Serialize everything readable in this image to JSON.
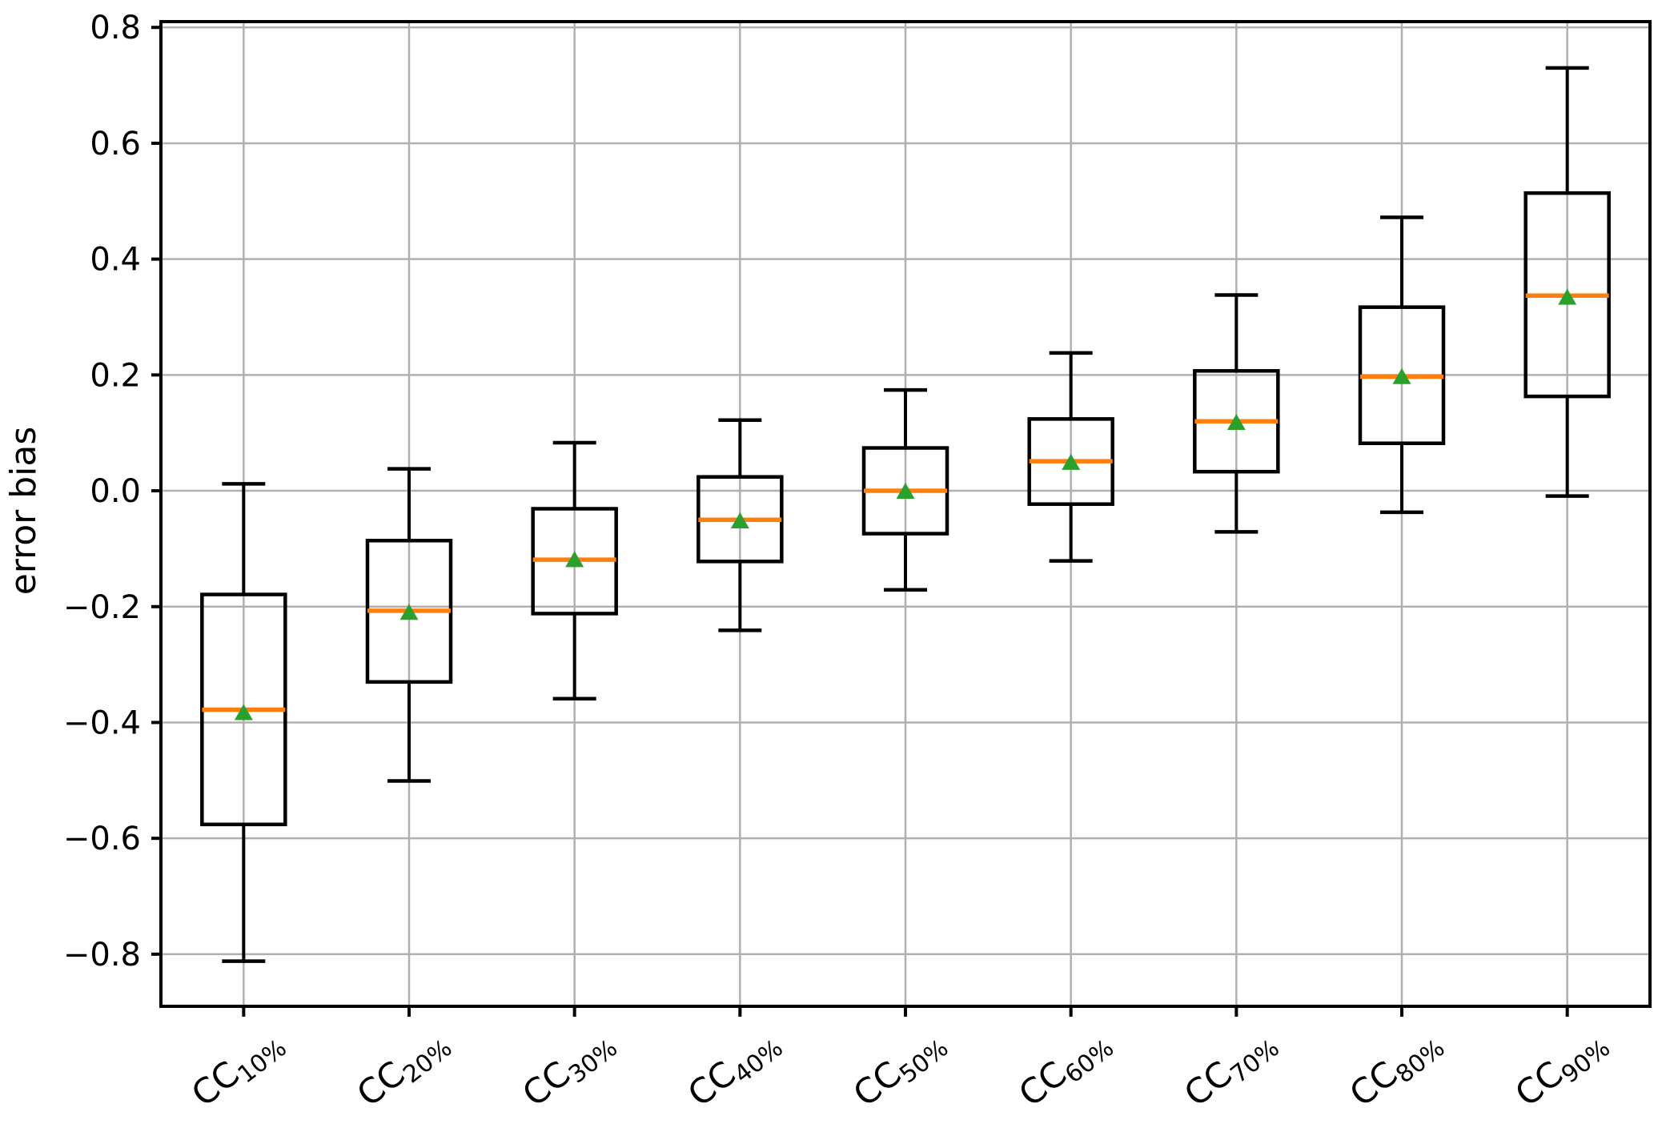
{
  "figure": {
    "description": "Box-and-whisker plot of error bias for nine cloud-cover classes"
  },
  "chart_data": {
    "type": "box",
    "title": "",
    "xlabel": "",
    "ylabel": "error bias",
    "grid": true,
    "legend": "none",
    "xlim": [
      0.5,
      9.5
    ],
    "ylim": [
      -0.89,
      0.81
    ],
    "positions": [
      1,
      2,
      3,
      4,
      5,
      6,
      7,
      8,
      9
    ],
    "categories": [
      {
        "base": "CC",
        "sub": "10%"
      },
      {
        "base": "CC",
        "sub": "20%"
      },
      {
        "base": "CC",
        "sub": "30%"
      },
      {
        "base": "CC",
        "sub": "40%"
      },
      {
        "base": "CC",
        "sub": "50%"
      },
      {
        "base": "CC",
        "sub": "60%"
      },
      {
        "base": "CC",
        "sub": "70%"
      },
      {
        "base": "CC",
        "sub": "80%"
      },
      {
        "base": "CC",
        "sub": "90%"
      }
    ],
    "series": [
      {
        "label": "CC10%",
        "whislo": -0.812,
        "q1": -0.576,
        "med": -0.378,
        "mean": -0.382,
        "q3": -0.179,
        "whishi": 0.012
      },
      {
        "label": "CC20%",
        "whislo": -0.501,
        "q1": -0.33,
        "med": -0.207,
        "mean": -0.209,
        "q3": -0.086,
        "whishi": 0.038
      },
      {
        "label": "CC30%",
        "whislo": -0.359,
        "q1": -0.212,
        "med": -0.119,
        "mean": -0.118,
        "q3": -0.031,
        "whishi": 0.083
      },
      {
        "label": "CC40%",
        "whislo": -0.241,
        "q1": -0.122,
        "med": -0.05,
        "mean": -0.051,
        "q3": 0.024,
        "whishi": 0.122
      },
      {
        "label": "CC50%",
        "whislo": -0.171,
        "q1": -0.074,
        "med": 0.0,
        "mean": 0.0,
        "q3": 0.074,
        "whishi": 0.174
      },
      {
        "label": "CC60%",
        "whislo": -0.121,
        "q1": -0.023,
        "med": 0.051,
        "mean": 0.05,
        "q3": 0.124,
        "whishi": 0.238
      },
      {
        "label": "CC70%",
        "whislo": -0.071,
        "q1": 0.033,
        "med": 0.12,
        "mean": 0.119,
        "q3": 0.207,
        "whishi": 0.338
      },
      {
        "label": "CC80%",
        "whislo": -0.037,
        "q1": 0.082,
        "med": 0.197,
        "mean": 0.198,
        "q3": 0.317,
        "whishi": 0.472
      },
      {
        "label": "CC90%",
        "whislo": -0.009,
        "q1": 0.163,
        "med": 0.337,
        "mean": 0.335,
        "q3": 0.514,
        "whishi": 0.73
      }
    ],
    "yticks": [
      {
        "value": 0.8,
        "label": "0.8"
      },
      {
        "value": 0.6,
        "label": "0.6"
      },
      {
        "value": 0.4,
        "label": "0.4"
      },
      {
        "value": 0.2,
        "label": "0.2"
      },
      {
        "value": 0.0,
        "label": "0.0"
      },
      {
        "value": -0.2,
        "label": "−0.2"
      },
      {
        "value": -0.4,
        "label": "−0.4"
      },
      {
        "value": -0.6,
        "label": "−0.6"
      },
      {
        "value": -0.8,
        "label": "−0.8"
      }
    ],
    "colors": {
      "median": "#ff7f0e",
      "mean_marker": "#2ca02c",
      "box": "#000000",
      "grid": "#b0b0b0",
      "axis": "#000000",
      "background": "#ffffff"
    }
  }
}
